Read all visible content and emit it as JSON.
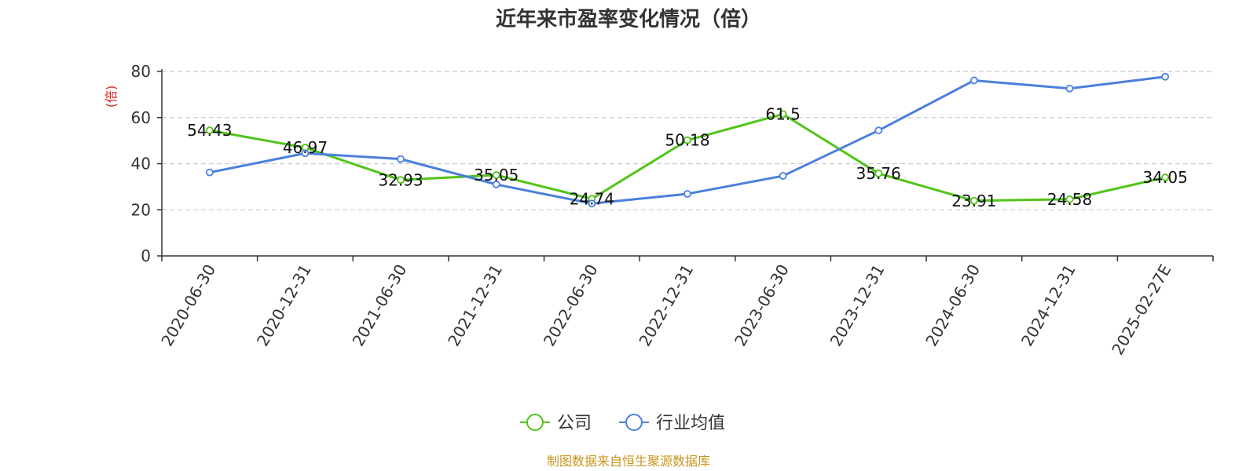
{
  "chart_data": {
    "type": "line",
    "title": "近年来市盈率变化情况（倍）",
    "xlabel": "",
    "ylabel": "(倍)",
    "ylabel_color": "#e02020",
    "categories": [
      "2020-06-30",
      "2020-12-31",
      "2021-06-30",
      "2021-12-31",
      "2022-06-30",
      "2022-12-31",
      "2023-06-30",
      "2023-12-31",
      "2024-06-30",
      "2024-12-31",
      "2025-02-27E"
    ],
    "yticks": [
      "0",
      "20",
      "40",
      "60",
      "80"
    ],
    "ylim": [
      0,
      80
    ],
    "grid": true,
    "legend_position": "bottom-center",
    "series": [
      {
        "name": "公司",
        "color": "#52c41a",
        "values": [
          54.43,
          46.97,
          32.93,
          35.05,
          24.74,
          50.18,
          61.5,
          35.76,
          23.91,
          24.58,
          34.05
        ],
        "labels": [
          "54.43",
          "46.97",
          "32.93",
          "35.05",
          "24.74",
          "50.18",
          "61.5",
          "35.76",
          "23.91",
          "24.58",
          "34.05"
        ]
      },
      {
        "name": "行业均值",
        "color": "#4a80dc",
        "values": [
          36.2,
          44.5,
          42.0,
          31.0,
          22.7,
          26.9,
          34.7,
          54.4,
          76.1,
          72.6,
          77.7
        ]
      }
    ],
    "source": "制图数据来自恒生聚源数据库",
    "source_color": "#c8961e"
  }
}
